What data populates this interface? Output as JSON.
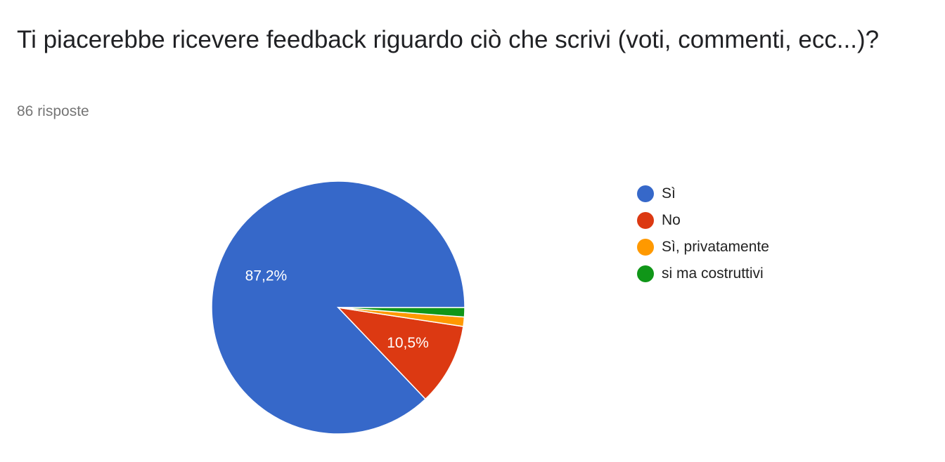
{
  "header": {
    "title": "Ti piacerebbe ricevere feedback riguardo ciò che scrivi (voti, commenti, ecc...)?",
    "response_count": "86 risposte"
  },
  "chart_data": {
    "type": "pie",
    "title": "Ti piacerebbe ricevere feedback riguardo ciò che scrivi (voti, commenti, ecc...)?",
    "legend": "right",
    "slices": [
      {
        "label": "Sì",
        "value": 87.2,
        "display": "87,2%",
        "color": "#3668c9"
      },
      {
        "label": "No",
        "value": 10.5,
        "display": "10,5%",
        "color": "#dc3912"
      },
      {
        "label": "Sì, privatamente",
        "value": 1.2,
        "display": "",
        "color": "#ff9900"
      },
      {
        "label": "si ma costruttivi",
        "value": 1.2,
        "display": "",
        "color": "#109618"
      }
    ]
  }
}
